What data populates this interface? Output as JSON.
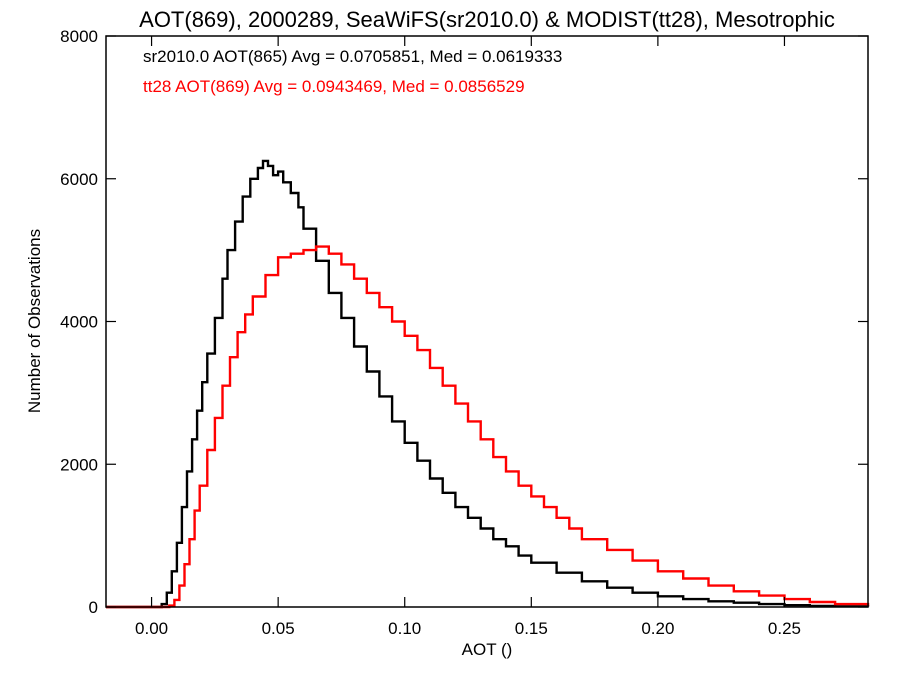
{
  "chart_data": {
    "type": "line",
    "title": "AOT(869), 2000289, SeaWiFS(sr2010.0) & MODIST(tt28), Mesotrophic",
    "xlabel": "AOT ()",
    "ylabel": "Number of Observations",
    "xlim": [
      -0.018,
      0.283
    ],
    "ylim": [
      0,
      8000
    ],
    "x_ticks": [
      0.0,
      0.05,
      0.1,
      0.15,
      0.2,
      0.25
    ],
    "x_tick_labels": [
      "0.00",
      "0.05",
      "0.10",
      "0.15",
      "0.20",
      "0.25"
    ],
    "y_ticks": [
      0,
      2000,
      4000,
      6000,
      8000
    ],
    "y_tick_labels": [
      "0",
      "2000",
      "4000",
      "6000",
      "8000"
    ],
    "grid": false,
    "step": true,
    "legend_placement": "top-left",
    "series": [
      {
        "name": "sr2010.0 AOT(865) Avg = 0.0705851, Med = 0.0619333",
        "color": "#000000",
        "x": [
          -0.018,
          0.0,
          0.004,
          0.006,
          0.008,
          0.01,
          0.012,
          0.014,
          0.016,
          0.018,
          0.02,
          0.022,
          0.025,
          0.028,
          0.03,
          0.033,
          0.036,
          0.039,
          0.042,
          0.044,
          0.046,
          0.048,
          0.05,
          0.052,
          0.055,
          0.058,
          0.06,
          0.065,
          0.07,
          0.075,
          0.08,
          0.085,
          0.09,
          0.095,
          0.1,
          0.105,
          0.11,
          0.115,
          0.12,
          0.125,
          0.13,
          0.135,
          0.14,
          0.145,
          0.15,
          0.16,
          0.17,
          0.18,
          0.19,
          0.2,
          0.21,
          0.22,
          0.23,
          0.24,
          0.25,
          0.26,
          0.27,
          0.283
        ],
        "values": [
          0,
          0,
          40,
          200,
          500,
          900,
          1400,
          1900,
          2350,
          2750,
          3150,
          3550,
          4050,
          4600,
          5000,
          5400,
          5750,
          6000,
          6150,
          6250,
          6180,
          6050,
          6100,
          5950,
          5800,
          5600,
          5300,
          4850,
          4400,
          4050,
          3650,
          3300,
          2950,
          2600,
          2300,
          2050,
          1800,
          1600,
          1400,
          1250,
          1100,
          950,
          850,
          720,
          620,
          480,
          360,
          270,
          200,
          150,
          110,
          80,
          60,
          40,
          25,
          15,
          10,
          5
        ]
      },
      {
        "name": "tt28 AOT(869) Avg = 0.0943469, Med = 0.0856529",
        "color": "#ff0000",
        "x": [
          -0.018,
          0.005,
          0.007,
          0.009,
          0.011,
          0.013,
          0.015,
          0.017,
          0.019,
          0.022,
          0.025,
          0.028,
          0.031,
          0.034,
          0.037,
          0.04,
          0.045,
          0.05,
          0.055,
          0.06,
          0.065,
          0.07,
          0.075,
          0.08,
          0.085,
          0.09,
          0.095,
          0.1,
          0.105,
          0.11,
          0.115,
          0.12,
          0.125,
          0.13,
          0.135,
          0.14,
          0.145,
          0.15,
          0.155,
          0.16,
          0.165,
          0.17,
          0.18,
          0.19,
          0.2,
          0.21,
          0.22,
          0.23,
          0.24,
          0.25,
          0.26,
          0.27,
          0.283
        ],
        "values": [
          0,
          0,
          20,
          100,
          300,
          600,
          950,
          1350,
          1700,
          2200,
          2650,
          3100,
          3500,
          3850,
          4100,
          4350,
          4650,
          4900,
          4950,
          5000,
          5050,
          4950,
          4800,
          4600,
          4400,
          4200,
          4000,
          3800,
          3600,
          3350,
          3100,
          2850,
          2600,
          2350,
          2100,
          1900,
          1700,
          1550,
          1400,
          1250,
          1100,
          950,
          800,
          650,
          500,
          400,
          300,
          220,
          160,
          110,
          70,
          40,
          20
        ]
      }
    ]
  }
}
